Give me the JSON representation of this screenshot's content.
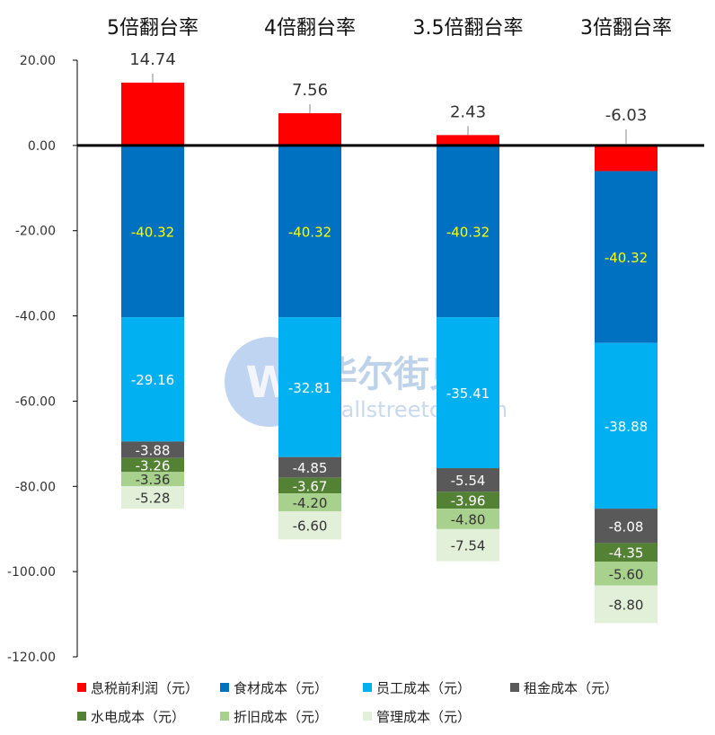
{
  "watermark": {
    "name_cn": "华尔街见闻",
    "site": "wallstreetcn.com"
  },
  "chart_data": {
    "type": "bar",
    "stacked": true,
    "categories": [
      "5倍翻台率",
      "4倍翻台率",
      "3.5倍翻台率",
      "3倍翻台率"
    ],
    "profit": {
      "name": "息税前利润（元）",
      "values": [
        14.74,
        7.56,
        2.43,
        -6.03
      ],
      "color": "#ff0000"
    },
    "series": [
      {
        "name": "食材成本（元）",
        "values": [
          -40.32,
          -40.32,
          -40.32,
          -40.32
        ],
        "color": "#0070c0",
        "label_color": "#ffff00"
      },
      {
        "name": "员工成本（元）",
        "values": [
          -29.16,
          -32.81,
          -35.41,
          -38.88
        ],
        "color": "#00b0f0",
        "label_color": "#ffffff"
      },
      {
        "name": "租金成本（元）",
        "values": [
          -3.88,
          -4.85,
          -5.54,
          -8.08
        ],
        "color": "#595959",
        "label_color": "#ffffff"
      },
      {
        "name": "水电成本（元）",
        "values": [
          -3.26,
          -3.67,
          -3.96,
          -4.35
        ],
        "color": "#548235",
        "label_color": "#ffffff"
      },
      {
        "name": "折旧成本（元）",
        "values": [
          -3.36,
          -4.2,
          -4.8,
          -5.6
        ],
        "color": "#a9d18e",
        "label_color": "#333333"
      },
      {
        "name": "管理成本（元）",
        "values": [
          -5.28,
          -6.6,
          -7.54,
          -8.8
        ],
        "color": "#e2f0d9",
        "label_color": "#333333"
      }
    ],
    "y_ticks": [
      "20.00",
      "0.00",
      "-20.00",
      "-40.00",
      "-60.00",
      "-80.00",
      "-100.00",
      "-120.00"
    ],
    "ylim": [
      -120,
      20
    ],
    "legend_position": "bottom",
    "grid": false
  }
}
